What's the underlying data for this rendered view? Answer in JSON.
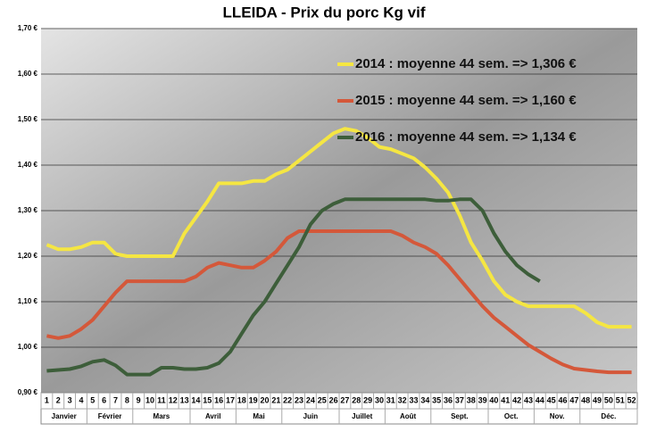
{
  "chart_data": {
    "type": "line",
    "title": "LLEIDA - Prix du porc Kg vif",
    "categories": [
      "1",
      "2",
      "3",
      "4",
      "5",
      "6",
      "7",
      "8",
      "9",
      "10",
      "11",
      "12",
      "13",
      "14",
      "15",
      "16",
      "17",
      "18",
      "19",
      "20",
      "21",
      "22",
      "23",
      "24",
      "25",
      "26",
      "27",
      "28",
      "29",
      "30",
      "31",
      "32",
      "33",
      "34",
      "35",
      "36",
      "37",
      "38",
      "39",
      "40",
      "41",
      "42",
      "43",
      "44",
      "45",
      "46",
      "47",
      "48",
      "49",
      "50",
      "51",
      "52"
    ],
    "months": [
      "Janvier",
      "Février",
      "Mars",
      "Avril",
      "Mai",
      "Juin",
      "Juillet",
      "Août",
      "Sept.",
      "Oct.",
      "Nov.",
      "Déc."
    ],
    "ylim": [
      0.9,
      1.7
    ],
    "yticks": [
      {
        "value": 0.9,
        "label": "0,90 €"
      },
      {
        "value": 1.0,
        "label": "1,00 €"
      },
      {
        "value": 1.1,
        "label": "1,10 €"
      },
      {
        "value": 1.2,
        "label": "1,20 €"
      },
      {
        "value": 1.3,
        "label": "1,30 €"
      },
      {
        "value": 1.4,
        "label": "1,40 €"
      },
      {
        "value": 1.5,
        "label": "1,50 €"
      },
      {
        "value": 1.6,
        "label": "1,60 €"
      },
      {
        "value": 1.7,
        "label": "1,70 €"
      }
    ],
    "grid": true,
    "legend": "top-right",
    "series": [
      {
        "name": "2014 : moyenne 44 sem. => 1,306 €",
        "color": "#f5e642",
        "values": [
          1.225,
          1.215,
          1.215,
          1.22,
          1.23,
          1.23,
          1.205,
          1.2,
          1.2,
          1.2,
          1.2,
          1.2,
          1.25,
          1.285,
          1.32,
          1.36,
          1.36,
          1.36,
          1.365,
          1.365,
          1.38,
          1.39,
          1.41,
          1.43,
          1.45,
          1.47,
          1.48,
          1.475,
          1.46,
          1.44,
          1.435,
          1.425,
          1.415,
          1.395,
          1.37,
          1.34,
          1.29,
          1.23,
          1.19,
          1.145,
          1.115,
          1.1,
          1.09,
          1.09,
          1.09,
          1.09,
          1.09,
          1.075,
          1.055,
          1.045,
          1.045,
          1.045
        ]
      },
      {
        "name": "2015 : moyenne 44 sem. => 1,160 €",
        "color": "#d4583a",
        "values": [
          1.025,
          1.02,
          1.025,
          1.04,
          1.06,
          1.09,
          1.12,
          1.145,
          1.145,
          1.145,
          1.145,
          1.145,
          1.145,
          1.155,
          1.175,
          1.185,
          1.18,
          1.175,
          1.175,
          1.19,
          1.21,
          1.24,
          1.255,
          1.255,
          1.255,
          1.255,
          1.255,
          1.255,
          1.255,
          1.255,
          1.255,
          1.245,
          1.23,
          1.22,
          1.205,
          1.18,
          1.15,
          1.12,
          1.09,
          1.065,
          1.045,
          1.025,
          1.005,
          0.99,
          0.975,
          0.962,
          0.953,
          0.95,
          0.947,
          0.945,
          0.945,
          0.945
        ]
      },
      {
        "name": "2016 : moyenne 44 sem. => 1,134 €",
        "color": "#3d5e3a",
        "values": [
          0.948,
          0.95,
          0.952,
          0.958,
          0.968,
          0.972,
          0.96,
          0.94,
          0.94,
          0.94,
          0.955,
          0.955,
          0.952,
          0.952,
          0.955,
          0.965,
          0.99,
          1.03,
          1.07,
          1.1,
          1.14,
          1.18,
          1.22,
          1.27,
          1.3,
          1.315,
          1.325,
          1.325,
          1.325,
          1.325,
          1.325,
          1.325,
          1.325,
          1.325,
          1.322,
          1.322,
          1.325,
          1.325,
          1.3,
          1.25,
          1.21,
          1.18,
          1.16,
          1.145,
          null,
          null,
          null,
          null,
          null,
          null,
          null,
          null
        ]
      }
    ]
  }
}
